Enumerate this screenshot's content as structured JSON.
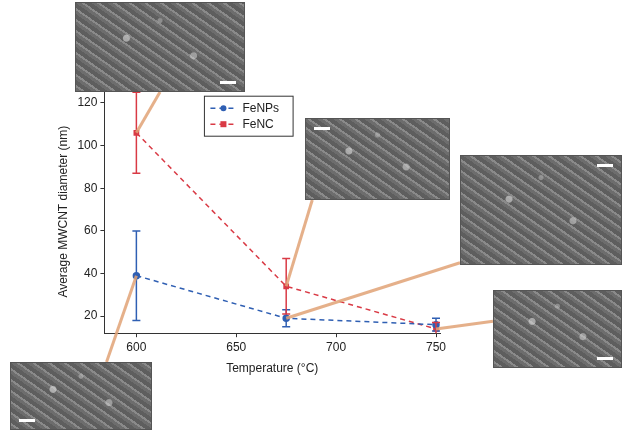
{
  "chart_data": {
    "type": "line",
    "x_label": "Temperature (°C)",
    "y_label": "Average MWCNT diameter (nm)",
    "x": [
      600,
      675,
      750
    ],
    "series": [
      {
        "name": "FeNPs",
        "color": "#2f5fb3",
        "marker": "circle",
        "line_style": "dashed",
        "values": [
          39,
          19,
          16
        ],
        "errors": [
          21,
          4,
          3
        ]
      },
      {
        "name": "FeNC",
        "color": "#d93a45",
        "marker": "square",
        "line_style": "dashed",
        "values": [
          106,
          34,
          14
        ],
        "errors": [
          19,
          13,
          3
        ]
      }
    ],
    "xlim": [
      584,
      752
    ],
    "xticks": [
      600,
      650,
      700,
      750
    ],
    "ylim": [
      12,
      126
    ],
    "yticks": [
      20,
      40,
      60,
      80,
      100,
      120
    ],
    "grid": false,
    "legend": "upper left"
  }
}
